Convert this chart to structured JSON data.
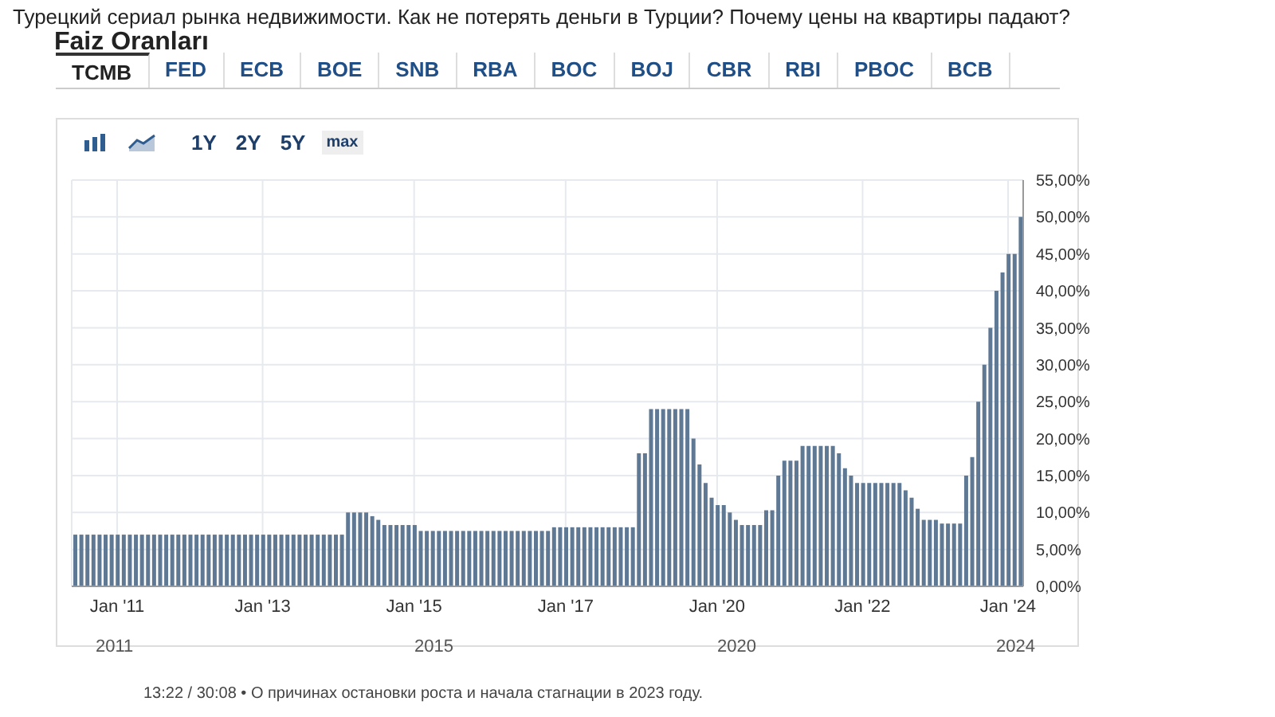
{
  "chart_data": {
    "type": "bar",
    "title": "Faiz Oranları",
    "annotations": [
      "Турецкий сериал рынка недвижимости. Как не потерять деньги в Турции? Почему цены на квартиры падают?",
      "TCMB",
      "FED",
      "ECB",
      "BOE",
      "SNB",
      "RBA",
      "BOC",
      "BOJ",
      "CBR",
      "RBI",
      "PBOC",
      "BCB",
      "1Y",
      "2Y",
      "5Y",
      "max",
      "13:22 / 30:08 • О причинах остановки роста и начала стагнации в 2023 году.",
      "2011",
      "2015",
      "2020",
      "2024"
    ],
    "categories": [
      null,
      null,
      null,
      null,
      null,
      null,
      null,
      "Jan '11",
      null,
      null,
      null,
      null,
      null,
      null,
      null,
      null,
      null,
      null,
      null,
      null,
      null,
      null,
      null,
      null,
      null,
      null,
      null,
      null,
      null,
      null,
      null,
      "Jan '13",
      null,
      null,
      null,
      null,
      null,
      null,
      null,
      null,
      null,
      null,
      null,
      null,
      null,
      null,
      null,
      null,
      null,
      null,
      null,
      null,
      null,
      null,
      null,
      null,
      "Jan '15",
      null,
      null,
      null,
      null,
      null,
      null,
      null,
      null,
      null,
      null,
      null,
      null,
      null,
      null,
      null,
      null,
      null,
      null,
      null,
      null,
      null,
      null,
      null,
      null,
      "Jan '17",
      null,
      null,
      null,
      null,
      null,
      null,
      null,
      null,
      null,
      null,
      null,
      null,
      null,
      null,
      null,
      null,
      null,
      null,
      null,
      null,
      null,
      null,
      null,
      null,
      "Jan '20",
      null,
      null,
      null,
      null,
      null,
      null,
      null,
      null,
      null,
      null,
      null,
      null,
      null,
      null,
      null,
      null,
      null,
      null,
      null,
      null,
      null,
      null,
      null,
      "Jan '22",
      null,
      null,
      null,
      null,
      null,
      null,
      null,
      null,
      null,
      null,
      null,
      null,
      null,
      null,
      null,
      null,
      null,
      null,
      null,
      null,
      null,
      null,
      null,
      "Jan '24",
      null,
      null
    ],
    "values": [
      7,
      7,
      7,
      7,
      7,
      7,
      7,
      7,
      7,
      7,
      7,
      7,
      7,
      7,
      7,
      7,
      7,
      7,
      7,
      7,
      7,
      7,
      7,
      7,
      7,
      7,
      7,
      7,
      7,
      7,
      7,
      7,
      7,
      7,
      7,
      7,
      7,
      7,
      7,
      7,
      7,
      7,
      7,
      7,
      7,
      10,
      10,
      10,
      10,
      9.5,
      9,
      8.3,
      8.3,
      8.3,
      8.3,
      8.3,
      8.3,
      7.5,
      7.5,
      7.5,
      7.5,
      7.5,
      7.5,
      7.5,
      7.5,
      7.5,
      7.5,
      7.5,
      7.5,
      7.5,
      7.5,
      7.5,
      7.5,
      7.5,
      7.5,
      7.5,
      7.5,
      7.5,
      7.5,
      8,
      8,
      8,
      8,
      8,
      8,
      8,
      8,
      8,
      8,
      8,
      8,
      8,
      8,
      18,
      18,
      24,
      24,
      24,
      24,
      24,
      24,
      24,
      20,
      16.5,
      14,
      12,
      11,
      11,
      10,
      9,
      8.3,
      8.3,
      8.3,
      8.3,
      10.3,
      10.3,
      15,
      17,
      17,
      17,
      19,
      19,
      19,
      19,
      19,
      19,
      18,
      16,
      15,
      14,
      14,
      14,
      14,
      14,
      14,
      14,
      14,
      13,
      12,
      10.5,
      9,
      9,
      9,
      8.5,
      8.5,
      8.5,
      8.5,
      15,
      17.5,
      25,
      30,
      35,
      40,
      42.5,
      45,
      45,
      50
    ],
    "color": "#5f7894",
    "ylim": [
      0,
      55
    ],
    "yticks": [
      {
        "value": 0,
        "label": "0,00%"
      },
      {
        "value": 5,
        "label": "5,00%"
      },
      {
        "value": 10,
        "label": "10,00%"
      },
      {
        "value": 15,
        "label": "15,00%"
      },
      {
        "value": 20,
        "label": "20,00%"
      },
      {
        "value": 25,
        "label": "25,00%"
      },
      {
        "value": 30,
        "label": "30,00%"
      },
      {
        "value": 35,
        "label": "35,00%"
      },
      {
        "value": 40,
        "label": "40,00%"
      },
      {
        "value": 45,
        "label": "45,00%"
      },
      {
        "value": 50,
        "label": "50,00%"
      },
      {
        "value": 55,
        "label": "55,00%"
      }
    ],
    "grid": true
  }
}
